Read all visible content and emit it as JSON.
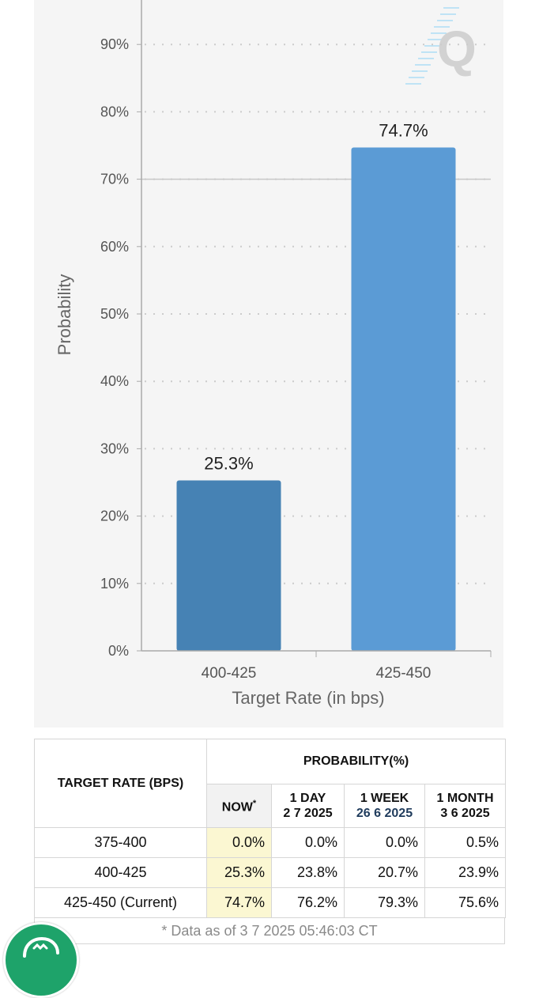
{
  "chart_data": {
    "type": "bar",
    "categories": [
      "400-425",
      "425-450"
    ],
    "values": [
      25.3,
      74.7
    ],
    "value_labels": [
      "25.3%",
      "74.7%"
    ],
    "colors": [
      "#4682b4",
      "#5b9bd5"
    ],
    "xlabel": "Target Rate (in bps)",
    "ylabel": "Probability",
    "ylim": [
      0,
      95
    ],
    "yticks": [
      0,
      10,
      20,
      30,
      40,
      50,
      60,
      70,
      80,
      90
    ],
    "ytick_labels": [
      "0%",
      "10%",
      "20%",
      "30%",
      "40%",
      "50%",
      "60%",
      "70%",
      "80%",
      "90%"
    ],
    "current_target_line": 70,
    "grid": true
  },
  "table": {
    "header_target": "TARGET RATE (BPS)",
    "header_probability": "PROBABILITY(%)",
    "col_now": "NOW",
    "col_now_mark": "*",
    "col_1day": "1 DAY",
    "col_1day_date": "2 7 2025",
    "col_1week": "1 WEEK",
    "col_1week_date": "26 6 2025",
    "col_1month": "1 MONTH",
    "col_1month_date": "3 6 2025",
    "rows": [
      {
        "rate": "375-400",
        "now": "0.0%",
        "day": "0.0%",
        "week": "0.0%",
        "month": "0.5%"
      },
      {
        "rate": "400-425",
        "now": "25.3%",
        "day": "23.8%",
        "week": "20.7%",
        "month": "23.9%"
      },
      {
        "rate": "425-450 (Current)",
        "now": "74.7%",
        "day": "76.2%",
        "week": "79.3%",
        "month": "75.6%"
      }
    ],
    "footnote": "* Data as of 3 7 2025 05:46:03 CT"
  },
  "icons": {
    "watermark": "q-logo-icon",
    "fab": "chat-icon"
  }
}
